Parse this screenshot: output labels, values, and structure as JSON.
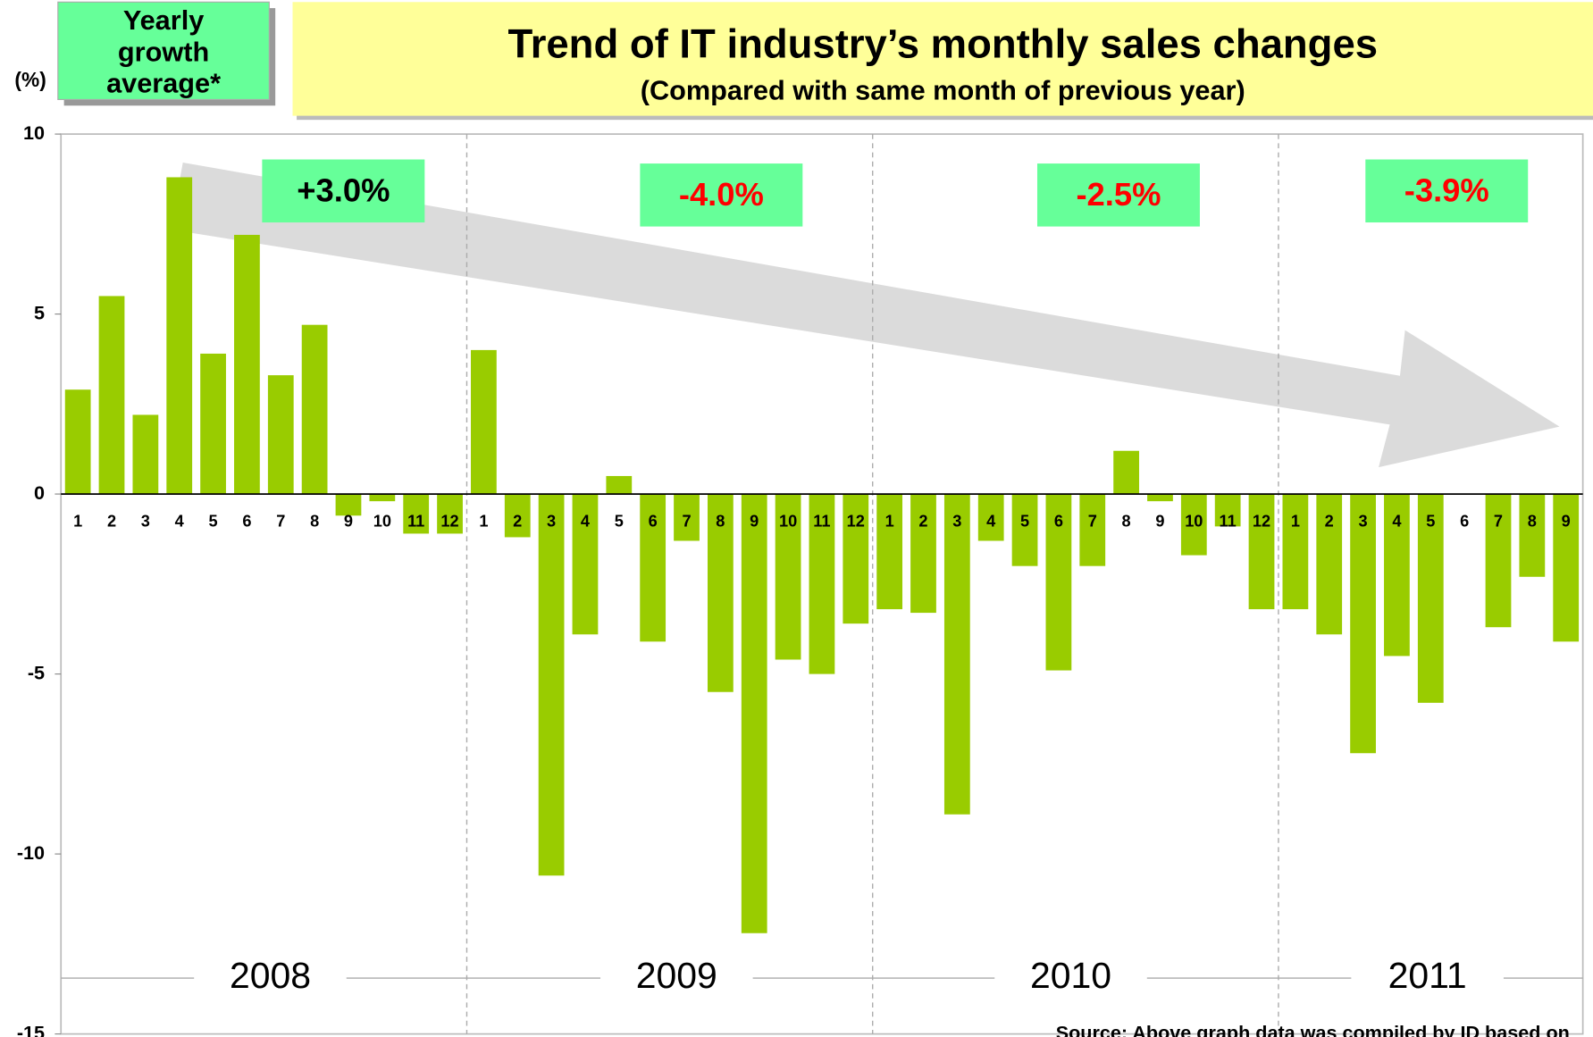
{
  "chart_data": {
    "type": "bar",
    "title": "Trend of IT industry’s monthly sales changes",
    "subtitle": "(Compared with same month of previous year)",
    "y_unit": "(%)",
    "legend_label": "Yearly growth average*",
    "source": "Source: Above graph data was compiled by ID based on",
    "color": "#99cc00",
    "categories": [
      "1",
      "2",
      "3",
      "4",
      "5",
      "6",
      "7",
      "8",
      "9",
      "10",
      "11",
      "12",
      "1",
      "2",
      "3",
      "4",
      "5",
      "6",
      "7",
      "8",
      "9",
      "10",
      "11",
      "12",
      "1",
      "2",
      "3",
      "4",
      "5",
      "6",
      "7",
      "8",
      "9",
      "10",
      "11",
      "12",
      "1",
      "2",
      "3",
      "4",
      "5",
      "6",
      "7",
      "8",
      "9"
    ],
    "values": [
      2.9,
      5.5,
      2.2,
      8.8,
      3.9,
      7.2,
      3.3,
      4.7,
      -0.6,
      -0.2,
      -1.1,
      -1.1,
      4.0,
      -1.2,
      -10.6,
      -3.9,
      0.5,
      -4.1,
      -1.3,
      -5.5,
      -12.2,
      -4.6,
      -5.0,
      -3.6,
      -3.2,
      -3.3,
      -8.9,
      -1.3,
      -2.0,
      -4.9,
      -2.0,
      1.2,
      -0.2,
      -1.7,
      -0.9,
      -3.2,
      -3.2,
      -3.9,
      -7.2,
      -4.5,
      -5.8,
      0,
      -3.7,
      -2.3,
      -4.1
    ],
    "years": [
      "2008",
      "2009",
      "2010",
      "2011"
    ],
    "yearly_averages": {
      "values": [
        3.0,
        -4.0,
        -2.5,
        -3.9
      ],
      "value_labels": [
        "+3.0%",
        "-4.0%",
        "-2.5%",
        "-3.9%"
      ]
    },
    "ylim": [
      -15,
      10
    ],
    "yticks": [
      -15,
      -10,
      -5,
      0,
      5,
      10
    ]
  }
}
